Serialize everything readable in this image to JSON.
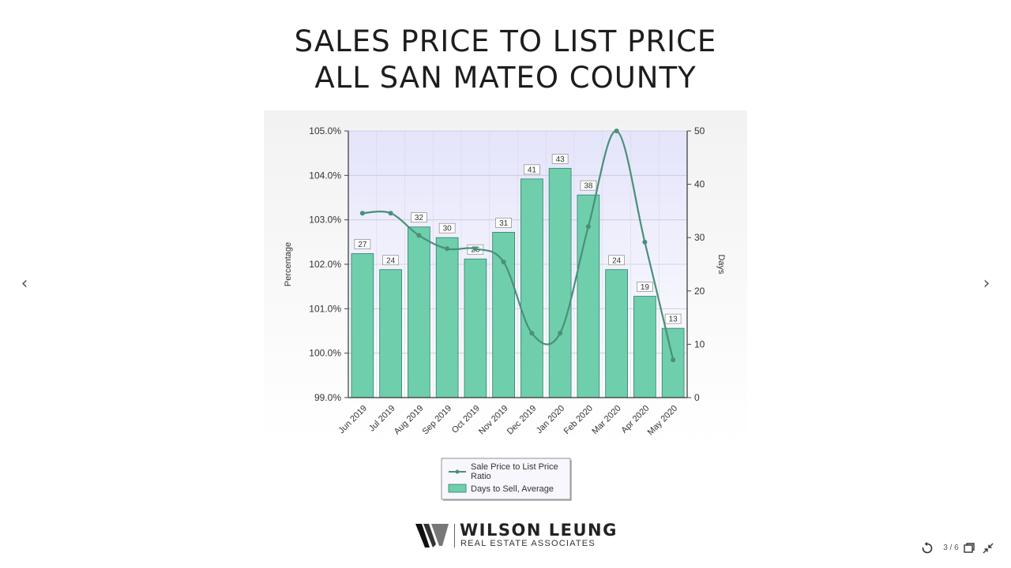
{
  "slide": {
    "title_line1": "SALES PRICE TO LIST PRICE",
    "title_line2": "ALL SAN MATEO COUNTY"
  },
  "navigation": {
    "prev_glyph": "‹",
    "next_glyph": "›",
    "counter": "3 / 6"
  },
  "logo": {
    "name": "WILSON LEUNG",
    "subtitle": "REAL ESTATE ASSOCIATES"
  },
  "colors": {
    "bar_fill": "#6fcfad",
    "bar_stroke": "#2f7f66",
    "line": "#4a8f79",
    "plot_bg_top": "#e4e4fb",
    "plot_bg_bottom": "#ffffff"
  },
  "chart_data": {
    "type": "bar",
    "categories": [
      "Jun 2019",
      "Jul 2019",
      "Aug 2019",
      "Sep 2019",
      "Oct 2019",
      "Nov 2019",
      "Dec 2019",
      "Jan 2020",
      "Feb 2020",
      "Mar 2020",
      "Apr 2020",
      "May 2020"
    ],
    "series": [
      {
        "name": "Days to Sell, Average",
        "type": "bar",
        "axis": "right",
        "values": [
          27,
          24,
          32,
          30,
          26,
          31,
          41,
          43,
          38,
          24,
          19,
          13
        ]
      },
      {
        "name": "Sale Price to List Price Ratio",
        "type": "line",
        "axis": "left",
        "values": [
          103.15,
          103.15,
          102.65,
          102.35,
          102.35,
          102.05,
          100.45,
          100.45,
          102.85,
          105.0,
          102.5,
          99.85
        ]
      }
    ],
    "ylabel_left": "Percentage",
    "ylabel_right": "Days",
    "ylim_left": [
      99.0,
      105.0
    ],
    "ylim_right": [
      0,
      50
    ],
    "yticks_left": [
      "105.0%",
      "104.0%",
      "103.0%",
      "102.0%",
      "101.0%",
      "100.0%",
      "99.0%"
    ],
    "yticks_right": [
      "50",
      "40",
      "30",
      "20",
      "10",
      "0"
    ],
    "grid": true,
    "legend_position": "bottom",
    "legend": [
      "Sale Price to List Price Ratio",
      "Days to Sell, Average"
    ]
  }
}
